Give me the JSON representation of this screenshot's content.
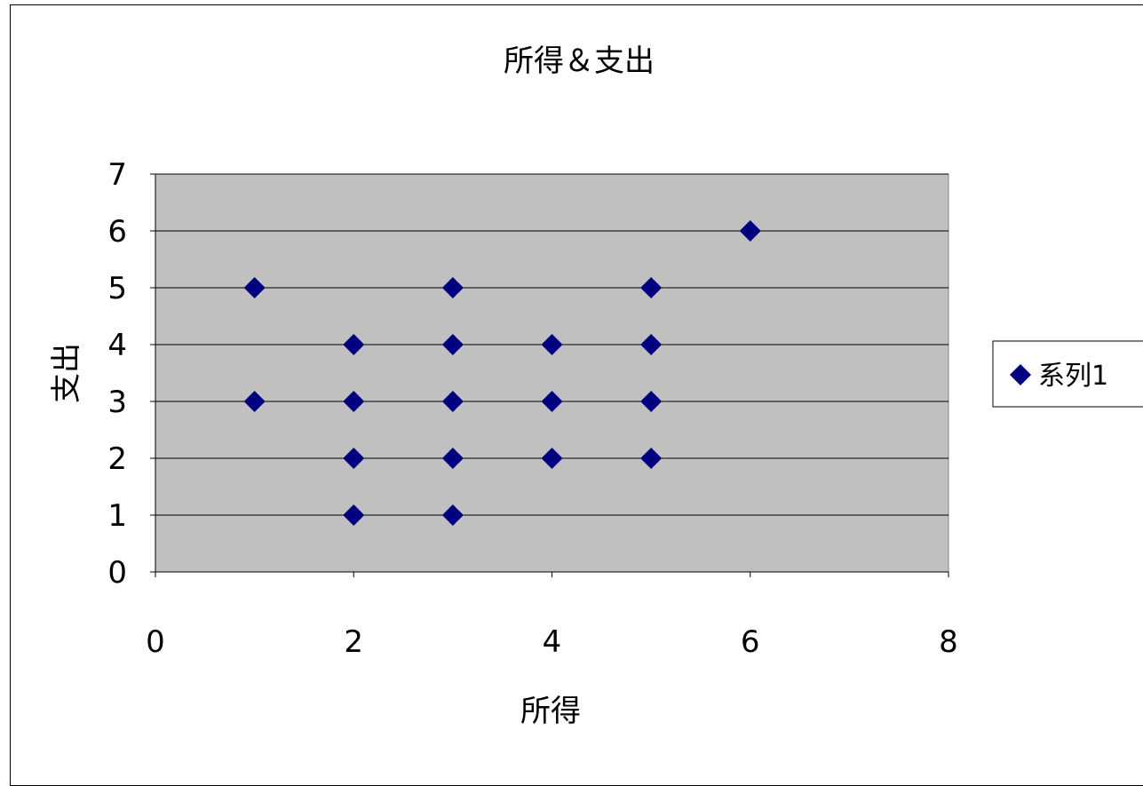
{
  "chart_data": {
    "type": "scatter",
    "title": "所得＆支出",
    "xlabel": "所得",
    "ylabel": "支出",
    "xlim": [
      0,
      8
    ],
    "ylim": [
      0,
      7
    ],
    "xticks": [
      "0",
      "2",
      "4",
      "6",
      "8"
    ],
    "yticks": [
      "0",
      "1",
      "2",
      "3",
      "4",
      "5",
      "6",
      "7"
    ],
    "grid": "horizontal",
    "legend_placement": "right",
    "plot_background": "#c0c0c0",
    "marker": "diamond",
    "series": [
      {
        "name": "系列1",
        "color": "#000080",
        "points": [
          [
            1,
            5
          ],
          [
            1,
            3
          ],
          [
            2,
            4
          ],
          [
            2,
            3
          ],
          [
            2,
            2
          ],
          [
            2,
            1
          ],
          [
            3,
            5
          ],
          [
            3,
            4
          ],
          [
            3,
            3
          ],
          [
            3,
            2
          ],
          [
            3,
            1
          ],
          [
            4,
            4
          ],
          [
            4,
            3
          ],
          [
            4,
            2
          ],
          [
            5,
            5
          ],
          [
            5,
            4
          ],
          [
            5,
            3
          ],
          [
            5,
            2
          ],
          [
            6,
            6
          ]
        ]
      }
    ]
  }
}
